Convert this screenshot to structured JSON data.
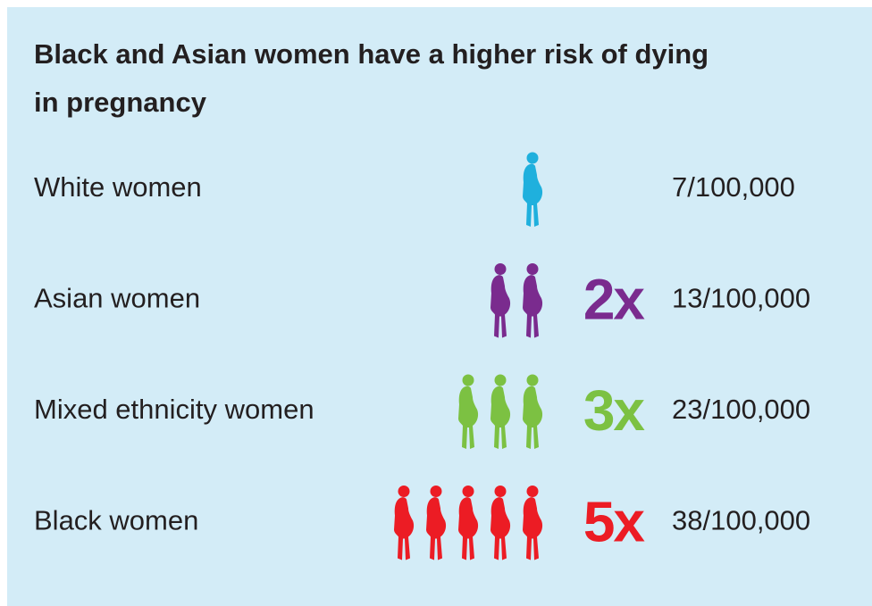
{
  "title_lines": [
    "Black and Asian women have a higher risk of dying",
    "in pregnancy"
  ],
  "rows": [
    {
      "label": "White women",
      "icons": 1,
      "color": "#1fb0dd",
      "rate": "7/100,000"
    },
    {
      "label": "Asian women",
      "icons": 2,
      "color": "#7a2b8e",
      "multiplier": "2x",
      "rate": "13/100,000"
    },
    {
      "label": "Mixed ethnicity women",
      "icons": 3,
      "color": "#7cc142",
      "multiplier": "3x",
      "rate": "23/100,000"
    },
    {
      "label": "Black women",
      "icons": 5,
      "color": "#ec1c24",
      "multiplier": "5x",
      "rate": "38/100,000"
    }
  ]
}
